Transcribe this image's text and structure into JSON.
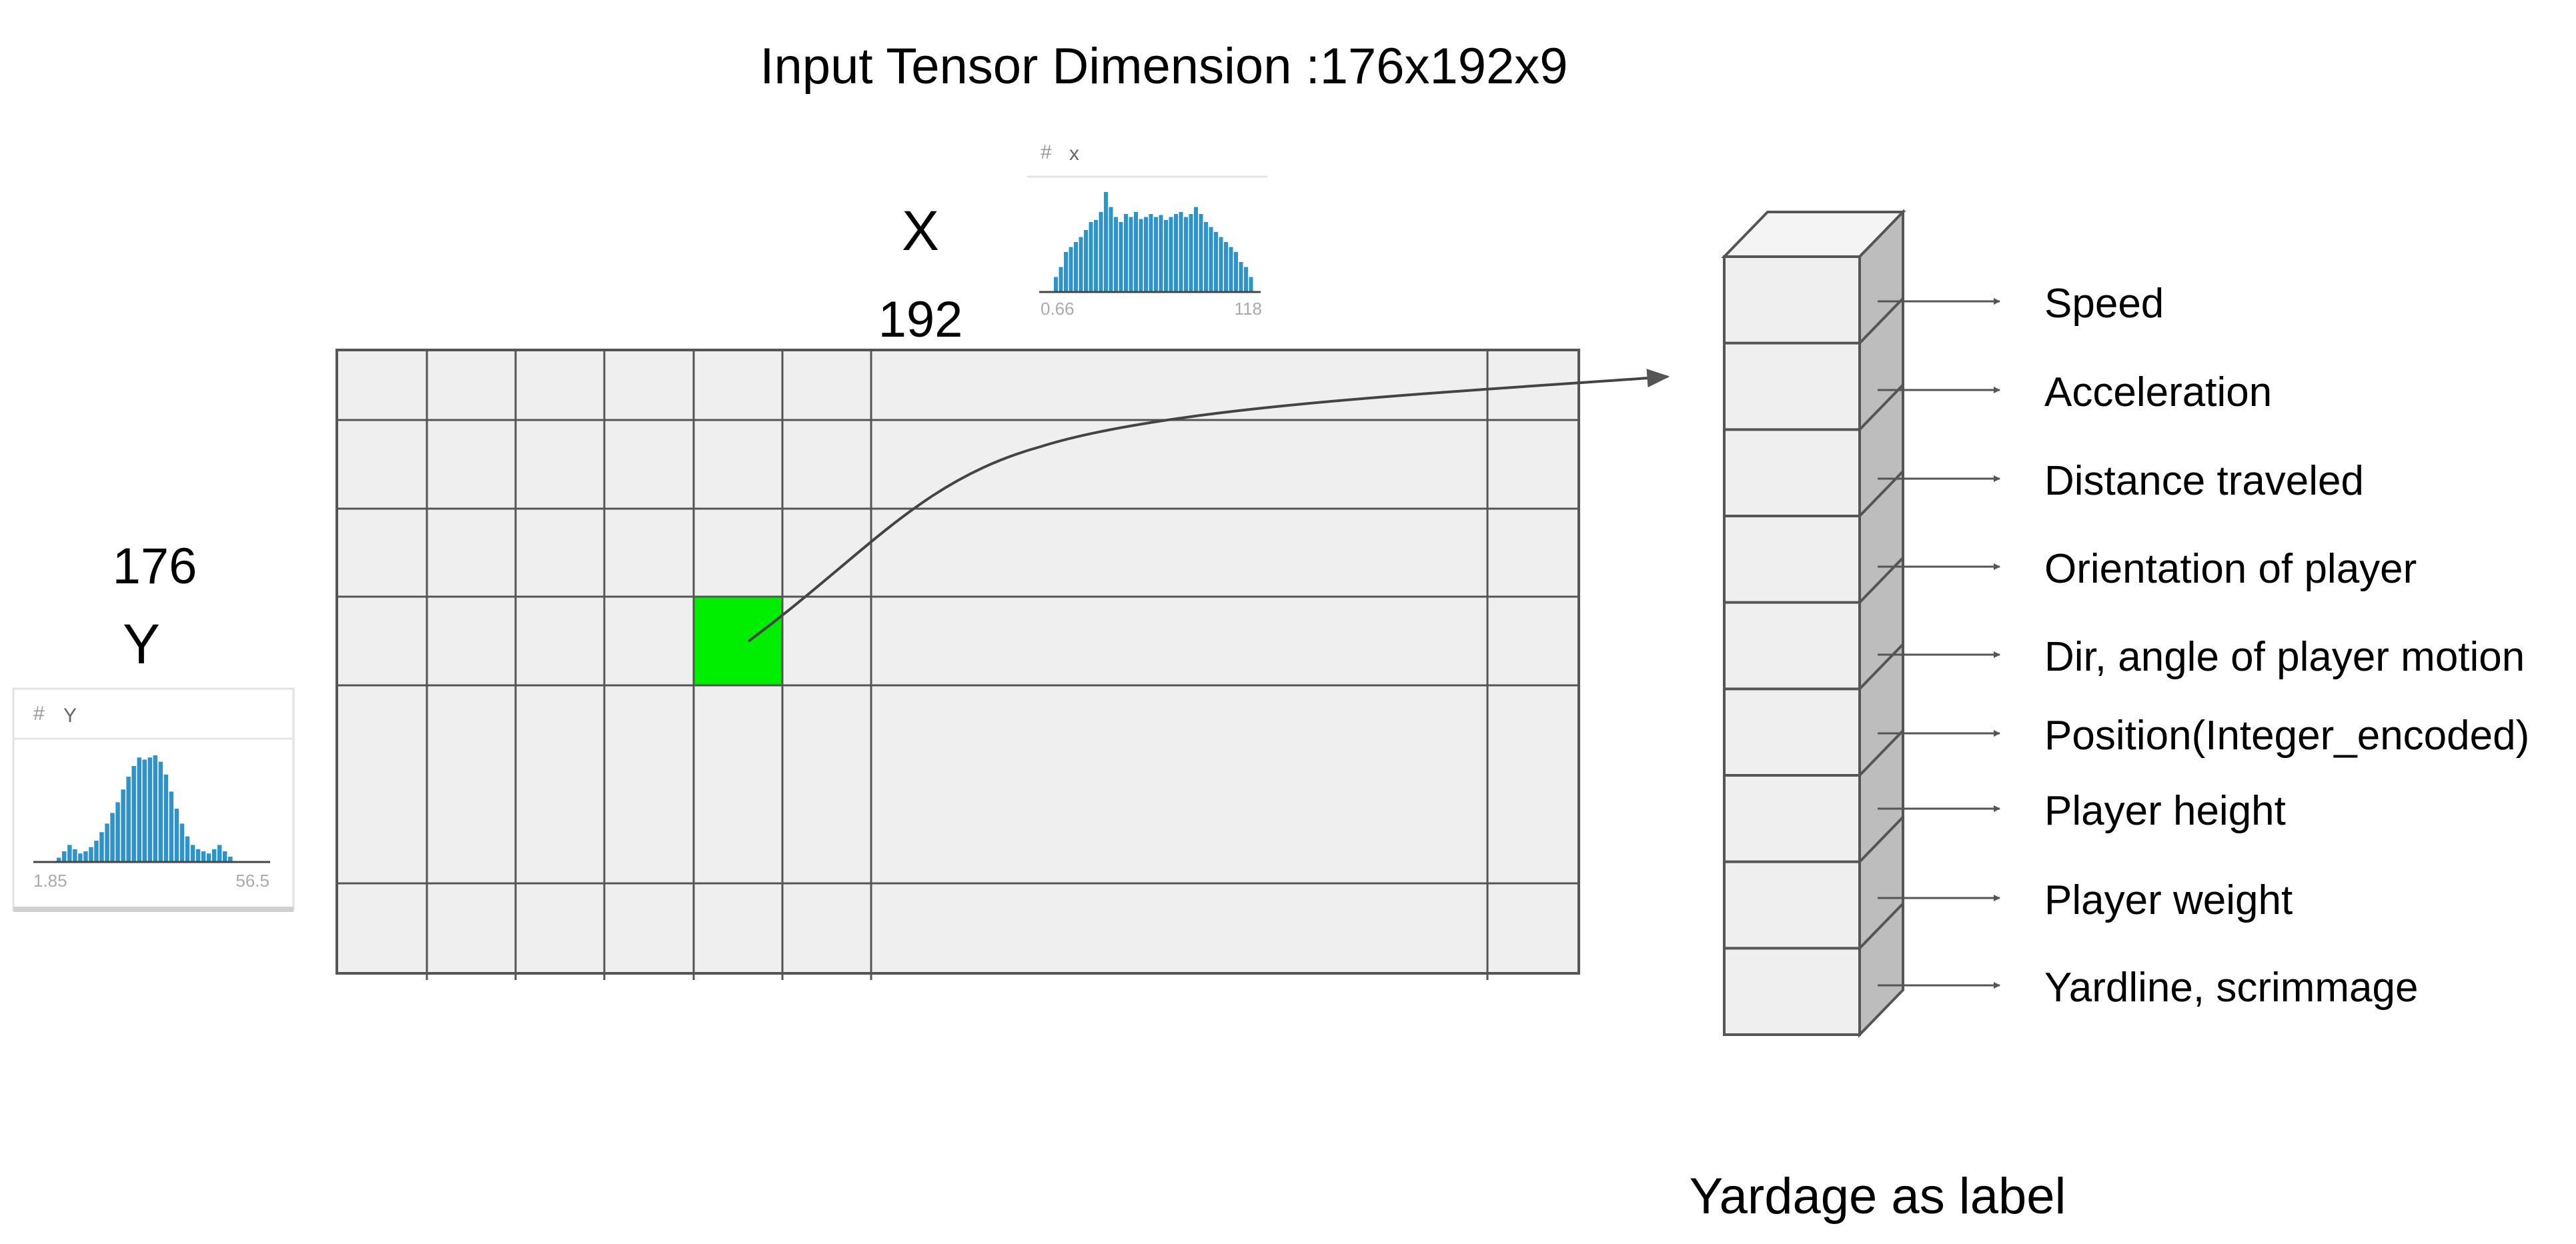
{
  "title": "Input Tensor Dimension :176x192x9",
  "x_axis": {
    "letter": "X",
    "size": "192"
  },
  "y_axis": {
    "size": "176",
    "letter": "Y"
  },
  "hist_x": {
    "hash": "#",
    "name": "x",
    "min_label": "0.66",
    "max_label": "118",
    "bar_color": "#2b95c9",
    "bars": [
      0.15,
      0.25,
      0.4,
      0.45,
      0.5,
      0.55,
      0.62,
      0.7,
      0.72,
      0.8,
      1.0,
      0.85,
      0.75,
      0.7,
      0.78,
      0.75,
      0.8,
      0.73,
      0.75,
      0.78,
      0.75,
      0.77,
      0.72,
      0.75,
      0.78,
      0.8,
      0.75,
      0.78,
      0.85,
      0.78,
      0.7,
      0.65,
      0.6,
      0.55,
      0.5,
      0.45,
      0.4,
      0.3,
      0.25,
      0.15
    ]
  },
  "hist_y": {
    "hash": "#",
    "name": "Y",
    "min_label": "1.85",
    "max_label": "56.5",
    "bar_color": "#2b95c9",
    "bars": [
      0.04,
      0.1,
      0.16,
      0.12,
      0.08,
      0.1,
      0.14,
      0.2,
      0.28,
      0.36,
      0.46,
      0.56,
      0.68,
      0.8,
      0.9,
      0.98,
      0.96,
      0.98,
      1.0,
      0.94,
      0.82,
      0.66,
      0.5,
      0.36,
      0.24,
      0.16,
      0.12,
      0.1,
      0.08,
      0.12,
      0.16,
      0.1,
      0.05
    ]
  },
  "colors": {
    "grid_fill": "#efefef",
    "grid_line": "#555555",
    "highlight": "#00ee00",
    "cube_front": "#efefef",
    "cube_side": "#bdbdbd",
    "cube_top": "#f4f4f4"
  },
  "features": [
    "Speed",
    "Acceleration",
    "Distance traveled",
    "Orientation of player",
    "Dir, angle of player motion",
    "Position(Integer_encoded)",
    "Player height",
    "Player weight",
    "Yardline, scrimmage"
  ],
  "label_caption": "Yardage as label"
}
